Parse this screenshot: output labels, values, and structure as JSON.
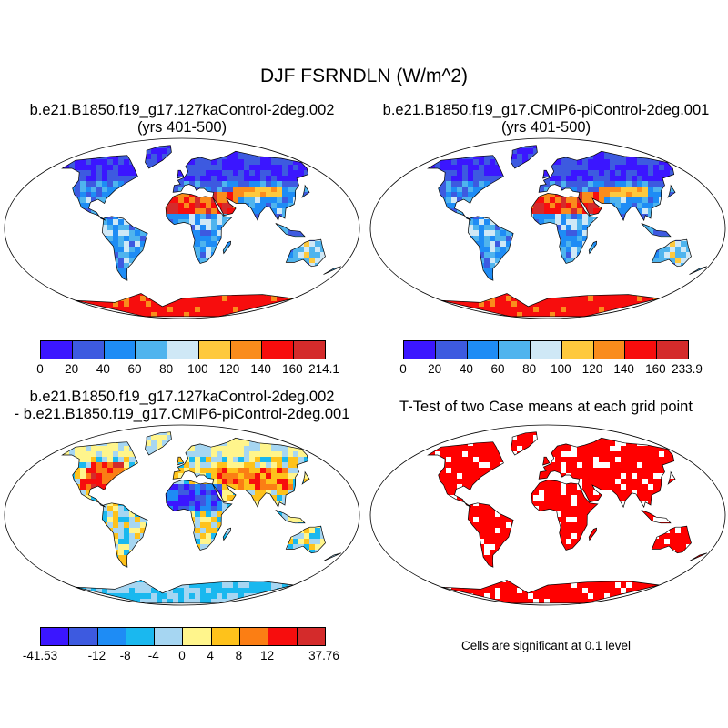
{
  "title": "DJF FSRNDLN (W/m^2)",
  "panels": [
    {
      "id": "case1",
      "title_line1": "b.e21.B1850.f19_g17.127kaControl-2deg.002",
      "title_line2": "(yrs 401-500)",
      "colorbar": {
        "colors": [
          "#3b16ff",
          "#3d5ae0",
          "#1e8cf5",
          "#4fb4ee",
          "#cfe8f6",
          "#fec93d",
          "#fa8c1c",
          "#f70d0d",
          "#d42b2b"
        ],
        "labels": [
          "0",
          "20",
          "40",
          "60",
          "80",
          "100",
          "120",
          "140",
          "160",
          "214.1"
        ]
      }
    },
    {
      "id": "case2",
      "title_line1": "b.e21.B1850.f19_g17.CMIP6-piControl-2deg.001",
      "title_line2": "(yrs 401-500)",
      "colorbar": {
        "colors": [
          "#3b16ff",
          "#3d5ae0",
          "#1e8cf5",
          "#4fb4ee",
          "#cfe8f6",
          "#fec93d",
          "#fa8c1c",
          "#f70d0d",
          "#d42b2b"
        ],
        "labels": [
          "0",
          "20",
          "40",
          "60",
          "80",
          "100",
          "120",
          "140",
          "160",
          "233.9"
        ]
      }
    },
    {
      "id": "difference",
      "title_line1": "b.e21.B1850.f19_g17.127kaControl-2deg.002",
      "title_line2": "- b.e21.B1850.f19_g17.CMIP6-piControl-2deg.001",
      "colorbar": {
        "colors": [
          "#3b16ff",
          "#3d5ae0",
          "#1e8cf5",
          "#1ab8ef",
          "#a6d6f2",
          "#fff58c",
          "#fec21b",
          "#fb7e14",
          "#f70d0d",
          "#d42b2b"
        ],
        "labels": [
          "-41.53",
          "",
          "-12",
          "-8",
          "-4",
          "0",
          "4",
          "8",
          "12",
          "",
          "37.76"
        ]
      }
    },
    {
      "id": "ttest",
      "title_line1": "T-Test of two Case means at each grid point",
      "note": "Cells are significant at 0.1 level"
    }
  ]
}
